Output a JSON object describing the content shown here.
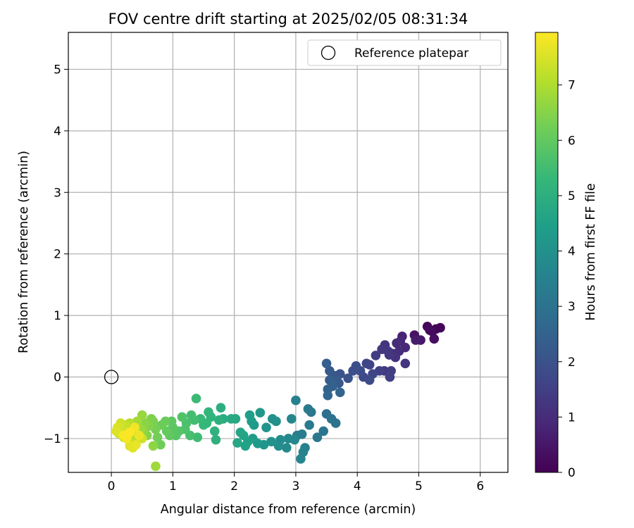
{
  "chart_data": {
    "type": "scatter",
    "title": "FOV centre drift starting at 2025/02/05 08:31:34",
    "xlabel": "Angular distance from reference (arcmin)",
    "ylabel": "Rotation from reference (arcmin)",
    "xlim": [
      -0.7,
      6.45
    ],
    "ylim": [
      -1.55,
      5.6
    ],
    "xticks": [
      0,
      1,
      2,
      3,
      4,
      5,
      6
    ],
    "yticks": [
      -1,
      0,
      1,
      2,
      3,
      4,
      5
    ],
    "ytick_labels": [
      "−1",
      "0",
      "1",
      "2",
      "3",
      "4",
      "5"
    ],
    "grid": true,
    "legend": {
      "position": "top-right",
      "entries": [
        "Reference platepar"
      ]
    },
    "reference_point": {
      "name": "Reference platepar",
      "x": 0,
      "y": 0
    },
    "colorbar": {
      "label": "Hours from first FF file",
      "range": [
        0,
        7.95
      ],
      "ticks": [
        0,
        1,
        2,
        3,
        4,
        5,
        6,
        7
      ],
      "colormap": "viridis"
    },
    "series": [
      {
        "marker_color_by": "hours",
        "points": [
          {
            "x": 5.28,
            "y": 0.78,
            "h": 0.05
          },
          {
            "x": 5.35,
            "y": 0.8,
            "h": 0.1
          },
          {
            "x": 5.14,
            "y": 0.82,
            "h": 0.12
          },
          {
            "x": 5.22,
            "y": 0.74,
            "h": 0.2
          },
          {
            "x": 5.25,
            "y": 0.62,
            "h": 0.3
          },
          {
            "x": 5.18,
            "y": 0.76,
            "h": 0.25
          },
          {
            "x": 4.93,
            "y": 0.68,
            "h": 0.4
          },
          {
            "x": 5.03,
            "y": 0.6,
            "h": 0.55
          },
          {
            "x": 4.95,
            "y": 0.6,
            "h": 0.6
          },
          {
            "x": 4.73,
            "y": 0.66,
            "h": 0.75
          },
          {
            "x": 4.7,
            "y": 0.58,
            "h": 0.85
          },
          {
            "x": 4.78,
            "y": 0.48,
            "h": 0.9
          },
          {
            "x": 4.64,
            "y": 0.55,
            "h": 1.0
          },
          {
            "x": 4.68,
            "y": 0.42,
            "h": 1.05
          },
          {
            "x": 4.58,
            "y": 0.38,
            "h": 1.1
          },
          {
            "x": 4.62,
            "y": 0.32,
            "h": 1.15
          },
          {
            "x": 4.78,
            "y": 0.22,
            "h": 1.2
          },
          {
            "x": 4.45,
            "y": 0.52,
            "h": 1.2
          },
          {
            "x": 4.5,
            "y": 0.42,
            "h": 1.25
          },
          {
            "x": 4.52,
            "y": 0.36,
            "h": 1.3
          },
          {
            "x": 4.4,
            "y": 0.45,
            "h": 1.3
          },
          {
            "x": 4.3,
            "y": 0.35,
            "h": 1.4
          },
          {
            "x": 4.44,
            "y": 0.1,
            "h": 1.35
          },
          {
            "x": 4.55,
            "y": 0.1,
            "h": 1.45
          },
          {
            "x": 4.53,
            "y": 0.0,
            "h": 1.5
          },
          {
            "x": 4.36,
            "y": 0.1,
            "h": 1.5
          },
          {
            "x": 4.2,
            "y": 0.2,
            "h": 1.6
          },
          {
            "x": 4.15,
            "y": 0.22,
            "h": 1.7
          },
          {
            "x": 4.25,
            "y": 0.05,
            "h": 1.65
          },
          {
            "x": 4.1,
            "y": 0.0,
            "h": 1.75
          },
          {
            "x": 4.05,
            "y": 0.1,
            "h": 1.85
          },
          {
            "x": 4.2,
            "y": -0.05,
            "h": 1.8
          },
          {
            "x": 3.98,
            "y": 0.18,
            "h": 1.9
          },
          {
            "x": 3.93,
            "y": 0.1,
            "h": 1.95
          },
          {
            "x": 3.85,
            "y": -0.02,
            "h": 2.0
          },
          {
            "x": 3.72,
            "y": 0.05,
            "h": 2.05
          },
          {
            "x": 3.65,
            "y": 0.02,
            "h": 2.1
          },
          {
            "x": 3.7,
            "y": -0.1,
            "h": 2.15
          },
          {
            "x": 3.55,
            "y": 0.1,
            "h": 2.2
          },
          {
            "x": 3.58,
            "y": -0.05,
            "h": 2.25
          },
          {
            "x": 3.5,
            "y": 0.22,
            "h": 2.4
          },
          {
            "x": 3.6,
            "y": -0.15,
            "h": 2.45
          },
          {
            "x": 3.52,
            "y": -0.2,
            "h": 2.5
          },
          {
            "x": 3.72,
            "y": -0.25,
            "h": 2.55
          },
          {
            "x": 3.52,
            "y": -0.3,
            "h": 2.6
          },
          {
            "x": 3.55,
            "y": -0.05,
            "h": 2.35
          },
          {
            "x": 3.65,
            "y": -0.05,
            "h": 2.3
          },
          {
            "x": 3.5,
            "y": -0.6,
            "h": 2.9
          },
          {
            "x": 3.58,
            "y": -0.68,
            "h": 3.0
          },
          {
            "x": 3.65,
            "y": -0.75,
            "h": 3.05
          },
          {
            "x": 3.45,
            "y": -0.88,
            "h": 3.1
          },
          {
            "x": 3.35,
            "y": -0.98,
            "h": 3.15
          },
          {
            "x": 3.25,
            "y": -0.57,
            "h": 3.2
          },
          {
            "x": 3.2,
            "y": -0.52,
            "h": 3.25
          },
          {
            "x": 3.22,
            "y": -0.78,
            "h": 3.3
          },
          {
            "x": 3.1,
            "y": -0.93,
            "h": 3.35
          },
          {
            "x": 3.02,
            "y": -0.95,
            "h": 3.4
          },
          {
            "x": 3.0,
            "y": -0.38,
            "h": 3.45
          },
          {
            "x": 3.15,
            "y": -1.15,
            "h": 3.5
          },
          {
            "x": 3.12,
            "y": -1.22,
            "h": 3.55
          },
          {
            "x": 3.08,
            "y": -1.33,
            "h": 3.6
          },
          {
            "x": 2.93,
            "y": -0.68,
            "h": 3.65
          },
          {
            "x": 2.98,
            "y": -1.02,
            "h": 3.7
          },
          {
            "x": 2.88,
            "y": -1.0,
            "h": 3.75
          },
          {
            "x": 2.85,
            "y": -1.15,
            "h": 3.8
          },
          {
            "x": 2.75,
            "y": -1.02,
            "h": 3.85
          },
          {
            "x": 2.72,
            "y": -1.12,
            "h": 3.9
          },
          {
            "x": 2.68,
            "y": -0.72,
            "h": 3.95
          },
          {
            "x": 2.62,
            "y": -0.68,
            "h": 4.0
          },
          {
            "x": 2.6,
            "y": -1.05,
            "h": 4.05
          },
          {
            "x": 2.52,
            "y": -0.82,
            "h": 4.1
          },
          {
            "x": 2.48,
            "y": -1.1,
            "h": 4.15
          },
          {
            "x": 2.42,
            "y": -0.58,
            "h": 4.2
          },
          {
            "x": 2.38,
            "y": -1.08,
            "h": 4.25
          },
          {
            "x": 2.32,
            "y": -0.78,
            "h": 4.3
          },
          {
            "x": 2.3,
            "y": -1.0,
            "h": 4.35
          },
          {
            "x": 2.28,
            "y": -0.72,
            "h": 4.4
          },
          {
            "x": 2.25,
            "y": -0.62,
            "h": 4.45
          },
          {
            "x": 2.22,
            "y": -1.05,
            "h": 4.5
          },
          {
            "x": 2.18,
            "y": -1.12,
            "h": 4.55
          },
          {
            "x": 2.15,
            "y": -0.95,
            "h": 4.6
          },
          {
            "x": 2.1,
            "y": -0.9,
            "h": 4.65
          },
          {
            "x": 2.05,
            "y": -1.07,
            "h": 4.7
          },
          {
            "x": 2.02,
            "y": -0.68,
            "h": 4.75
          },
          {
            "x": 1.95,
            "y": -0.68,
            "h": 4.8
          },
          {
            "x": 1.82,
            "y": -0.68,
            "h": 4.9
          },
          {
            "x": 1.78,
            "y": -0.5,
            "h": 4.95
          },
          {
            "x": 1.75,
            "y": -0.7,
            "h": 5.0
          },
          {
            "x": 1.7,
            "y": -1.02,
            "h": 5.05
          },
          {
            "x": 1.68,
            "y": -0.88,
            "h": 5.1
          },
          {
            "x": 1.62,
            "y": -0.65,
            "h": 5.15
          },
          {
            "x": 1.58,
            "y": -0.57,
            "h": 5.2
          },
          {
            "x": 1.55,
            "y": -0.75,
            "h": 5.25
          },
          {
            "x": 1.5,
            "y": -0.78,
            "h": 5.3
          },
          {
            "x": 1.45,
            "y": -0.68,
            "h": 5.35
          },
          {
            "x": 1.38,
            "y": -0.35,
            "h": 5.4
          },
          {
            "x": 1.4,
            "y": -0.98,
            "h": 5.45
          },
          {
            "x": 1.35,
            "y": -0.7,
            "h": 5.5
          },
          {
            "x": 1.3,
            "y": -0.62,
            "h": 5.55
          },
          {
            "x": 1.28,
            "y": -0.95,
            "h": 5.6
          },
          {
            "x": 1.22,
            "y": -0.75,
            "h": 5.65
          },
          {
            "x": 1.2,
            "y": -0.85,
            "h": 5.7
          },
          {
            "x": 1.15,
            "y": -0.65,
            "h": 5.75
          },
          {
            "x": 1.1,
            "y": -0.88,
            "h": 5.8
          },
          {
            "x": 1.05,
            "y": -0.95,
            "h": 5.85
          },
          {
            "x": 1.0,
            "y": -0.82,
            "h": 5.9
          },
          {
            "x": 0.98,
            "y": -0.72,
            "h": 5.95
          },
          {
            "x": 0.95,
            "y": -0.95,
            "h": 6.0
          },
          {
            "x": 0.9,
            "y": -0.88,
            "h": 6.05
          },
          {
            "x": 0.88,
            "y": -0.72,
            "h": 6.1
          },
          {
            "x": 0.82,
            "y": -0.78,
            "h": 6.15
          },
          {
            "x": 0.8,
            "y": -1.1,
            "h": 6.2
          },
          {
            "x": 0.75,
            "y": -0.98,
            "h": 6.25
          },
          {
            "x": 0.72,
            "y": -0.85,
            "h": 6.3
          },
          {
            "x": 0.68,
            "y": -0.72,
            "h": 6.35
          },
          {
            "x": 0.65,
            "y": -0.68,
            "h": 6.4
          },
          {
            "x": 0.6,
            "y": -0.8,
            "h": 6.45
          },
          {
            "x": 0.58,
            "y": -0.95,
            "h": 6.5
          },
          {
            "x": 0.55,
            "y": -0.75,
            "h": 6.55
          },
          {
            "x": 0.52,
            "y": -0.88,
            "h": 6.6
          },
          {
            "x": 0.5,
            "y": -0.62,
            "h": 6.7
          },
          {
            "x": 0.48,
            "y": -0.85,
            "h": 6.75
          },
          {
            "x": 0.45,
            "y": -1.0,
            "h": 6.8
          },
          {
            "x": 0.42,
            "y": -0.72,
            "h": 6.85
          },
          {
            "x": 0.4,
            "y": -0.9,
            "h": 6.9
          },
          {
            "x": 0.38,
            "y": -1.05,
            "h": 6.95
          },
          {
            "x": 0.35,
            "y": -0.8,
            "h": 7.0
          },
          {
            "x": 0.32,
            "y": -0.95,
            "h": 7.05
          },
          {
            "x": 0.3,
            "y": -0.75,
            "h": 7.1
          },
          {
            "x": 0.28,
            "y": -1.02,
            "h": 7.15
          },
          {
            "x": 0.25,
            "y": -0.88,
            "h": 7.2
          },
          {
            "x": 0.22,
            "y": -0.78,
            "h": 7.25
          },
          {
            "x": 0.2,
            "y": -0.98,
            "h": 7.3
          },
          {
            "x": 0.18,
            "y": -0.85,
            "h": 7.35
          },
          {
            "x": 0.15,
            "y": -0.75,
            "h": 7.4
          },
          {
            "x": 0.12,
            "y": -0.92,
            "h": 7.45
          },
          {
            "x": 0.1,
            "y": -0.82,
            "h": 7.5
          },
          {
            "x": 0.08,
            "y": -0.88,
            "h": 7.55
          },
          {
            "x": 0.3,
            "y": -1.12,
            "h": 7.6
          },
          {
            "x": 0.35,
            "y": -1.15,
            "h": 7.65
          },
          {
            "x": 0.4,
            "y": -1.1,
            "h": 7.7
          },
          {
            "x": 0.45,
            "y": -0.95,
            "h": 7.75
          },
          {
            "x": 0.38,
            "y": -0.82,
            "h": 7.8
          },
          {
            "x": 0.25,
            "y": -1.0,
            "h": 7.85
          },
          {
            "x": 0.2,
            "y": -0.95,
            "h": 7.9
          },
          {
            "x": 0.3,
            "y": -0.9,
            "h": 7.92
          },
          {
            "x": 0.72,
            "y": -1.45,
            "h": 6.8
          },
          {
            "x": 0.68,
            "y": -1.12,
            "h": 6.6
          },
          {
            "x": 0.5,
            "y": -1.0,
            "h": 7.4
          }
        ]
      }
    ]
  }
}
